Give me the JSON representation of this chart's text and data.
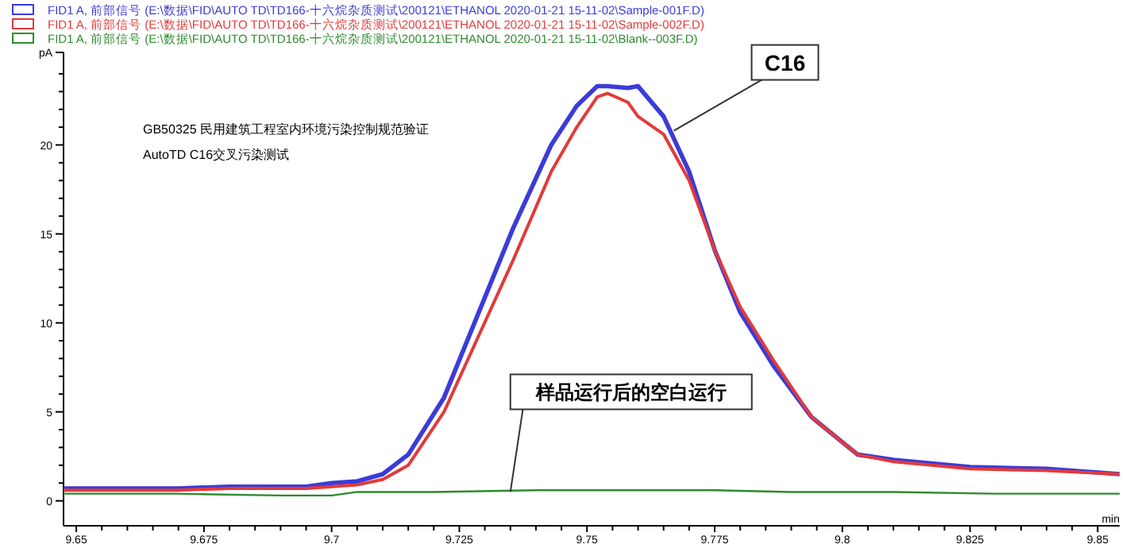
{
  "chart_data": {
    "type": "line",
    "xlabel": "min",
    "ylabel": "pA",
    "legend": "top",
    "line_style": "solid",
    "grid": false,
    "xlim": [
      9.6475,
      9.8543
    ],
    "ylim": [
      -1.4,
      25.2
    ],
    "xticks": [
      9.65,
      {
        "value": 9.655,
        "label": null
      },
      {
        "value": 9.66,
        "label": null
      },
      {
        "value": 9.665,
        "label": null
      },
      {
        "value": 9.67,
        "label": null
      },
      9.675,
      {
        "value": 9.68,
        "label": null
      },
      {
        "value": 9.685,
        "label": null
      },
      {
        "value": 9.69,
        "label": null
      },
      {
        "value": 9.695,
        "label": null
      },
      9.7,
      {
        "value": 9.705,
        "label": null
      },
      {
        "value": 9.71,
        "label": null
      },
      {
        "value": 9.715,
        "label": null
      },
      {
        "value": 9.72,
        "label": null
      },
      9.725,
      {
        "value": 9.73,
        "label": null
      },
      {
        "value": 9.735,
        "label": null
      },
      {
        "value": 9.74,
        "label": null
      },
      {
        "value": 9.745,
        "label": null
      },
      9.75,
      {
        "value": 9.755,
        "label": null
      },
      {
        "value": 9.76,
        "label": null
      },
      {
        "value": 9.765,
        "label": null
      },
      {
        "value": 9.77,
        "label": null
      },
      9.775,
      {
        "value": 9.78,
        "label": null
      },
      {
        "value": 9.785,
        "label": null
      },
      {
        "value": 9.79,
        "label": null
      },
      {
        "value": 9.795,
        "label": null
      },
      9.8,
      {
        "value": 9.805,
        "label": null
      },
      {
        "value": 9.81,
        "label": null
      },
      {
        "value": 9.815,
        "label": null
      },
      {
        "value": 9.82,
        "label": null
      },
      9.825,
      {
        "value": 9.83,
        "label": null
      },
      {
        "value": 9.835,
        "label": null
      },
      {
        "value": 9.84,
        "label": null
      },
      {
        "value": 9.845,
        "label": null
      },
      9.85
    ],
    "yticks": [
      0,
      {
        "value": 1,
        "label": null
      },
      {
        "value": 2,
        "label": null
      },
      {
        "value": 3,
        "label": null
      },
      {
        "value": 4,
        "label": null
      },
      5,
      {
        "value": 6,
        "label": null
      },
      {
        "value": 7,
        "label": null
      },
      {
        "value": 8,
        "label": null
      },
      {
        "value": 9,
        "label": null
      },
      10,
      {
        "value": 11,
        "label": null
      },
      {
        "value": 12,
        "label": null
      },
      {
        "value": 13,
        "label": null
      },
      {
        "value": 14,
        "label": null
      },
      15,
      {
        "value": 16,
        "label": null
      },
      {
        "value": 17,
        "label": null
      },
      {
        "value": 18,
        "label": null
      },
      {
        "value": 19,
        "label": null
      },
      20,
      {
        "value": 21,
        "label": null
      },
      {
        "value": 22,
        "label": null
      },
      {
        "value": 23,
        "label": null
      },
      {
        "value": 24,
        "label": null
      }
    ],
    "series": [
      {
        "name": "FID1 A, 前部信号 (E:\\数据\\FID\\AUTO  TD\\TD166-十六烷杂质测试\\200121\\ETHANOL 2020-01-21 15-11-02\\Sample-001F.D)",
        "color": "#3b3bd9",
        "x": [
          9.6475,
          9.66,
          9.67,
          9.68,
          9.69,
          9.695,
          9.7,
          9.705,
          9.71,
          9.715,
          9.722,
          9.7355,
          9.743,
          9.748,
          9.752,
          9.754,
          9.758,
          9.76,
          9.765,
          9.77,
          9.775,
          9.78,
          9.7865,
          9.794,
          9.803,
          9.81,
          9.825,
          9.84,
          9.8543
        ],
        "values": [
          0.7,
          0.7,
          0.7,
          0.8,
          0.8,
          0.8,
          1.0,
          1.1,
          1.5,
          2.6,
          5.8,
          15.3,
          20.0,
          22.2,
          23.3,
          23.3,
          23.2,
          23.3,
          21.6,
          18.5,
          14.1,
          10.6,
          7.6,
          4.7,
          2.6,
          2.3,
          1.9,
          1.8,
          1.5
        ]
      },
      {
        "name": "FID1 A, 前部信号 (E:\\数据\\FID\\AUTO  TD\\TD166-十六烷杂质测试\\200121\\ETHANOL 2020-01-21 15-11-02\\Sample-002F.D)",
        "color": "#e23a3a",
        "x": [
          9.6475,
          9.66,
          9.67,
          9.68,
          9.69,
          9.695,
          9.7,
          9.705,
          9.71,
          9.715,
          9.722,
          9.7355,
          9.743,
          9.748,
          9.752,
          9.754,
          9.758,
          9.76,
          9.765,
          9.77,
          9.775,
          9.78,
          9.7865,
          9.794,
          9.803,
          9.81,
          9.825,
          9.84,
          9.8543
        ],
        "values": [
          0.6,
          0.6,
          0.6,
          0.7,
          0.7,
          0.7,
          0.8,
          0.9,
          1.2,
          2.0,
          5.0,
          13.5,
          18.5,
          21.0,
          22.7,
          22.9,
          22.4,
          21.6,
          20.6,
          18.0,
          14.1,
          10.9,
          7.9,
          4.7,
          2.6,
          2.2,
          1.8,
          1.7,
          1.5
        ]
      },
      {
        "name": "FID1 A, 前部信号 (E:\\数据\\FID\\AUTO  TD\\TD166-十六烷杂质测试\\200121\\ETHANOL 2020-01-21 15-11-02\\Blank--003F.D)",
        "color": "#2e8b2e",
        "x": [
          9.6475,
          9.67,
          9.69,
          9.7,
          9.705,
          9.72,
          9.74,
          9.76,
          9.775,
          9.79,
          9.81,
          9.83,
          9.8543
        ],
        "values": [
          0.4,
          0.4,
          0.3,
          0.3,
          0.5,
          0.5,
          0.6,
          0.6,
          0.6,
          0.5,
          0.5,
          0.4,
          0.4
        ]
      }
    ],
    "annotations": [
      "GB50325 民用建筑工程室内环境污染控制规范验证",
      "AutoTD C16交叉污染测试",
      {
        "text": "C16",
        "x": 9.767,
        "y": 20.8
      },
      {
        "text": "样品运行后的空白运行",
        "x": 9.735,
        "y": 0.5
      }
    ]
  }
}
